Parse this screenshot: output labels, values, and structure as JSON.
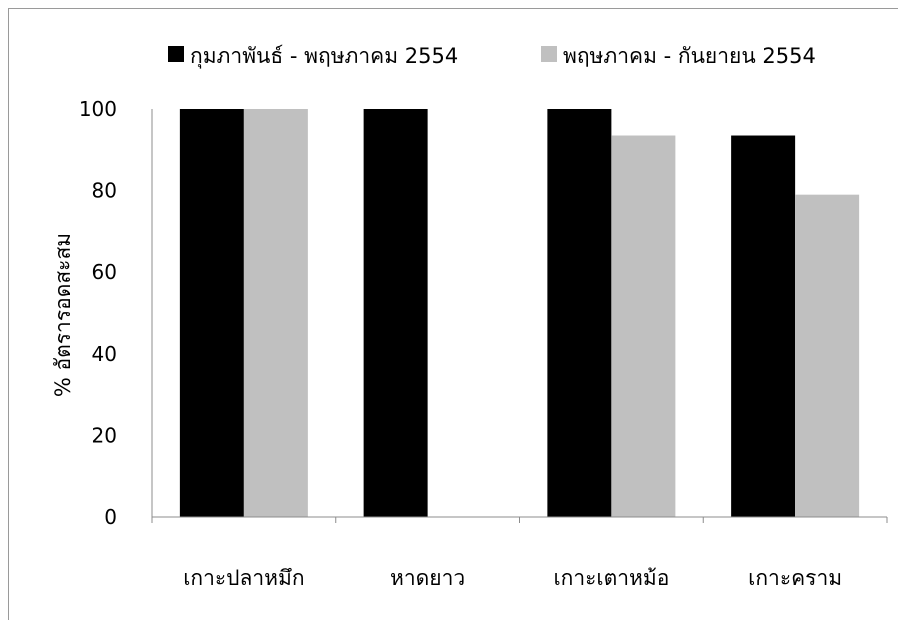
{
  "chart_data": {
    "type": "bar",
    "title": "",
    "xlabel": "",
    "ylabel": "% อัตรารอดสะสม",
    "ylim": [
      0,
      100
    ],
    "yticks": [
      0,
      20,
      40,
      60,
      80,
      100
    ],
    "categories": [
      "เกาะปลาหมึก",
      "หาดยาว",
      "เกาะเตาหม้อ",
      "เกาะคราม"
    ],
    "series": [
      {
        "name": "กุมภาพันธ์ - พฤษภาคม 2554",
        "color": "#000000",
        "values": [
          100,
          100,
          100,
          93.5
        ]
      },
      {
        "name": "พฤษภาคม - กันยายน 2554",
        "color": "#c0c0c0",
        "values": [
          100,
          null,
          93.5,
          79
        ]
      }
    ],
    "grid": false,
    "legend": "top"
  }
}
